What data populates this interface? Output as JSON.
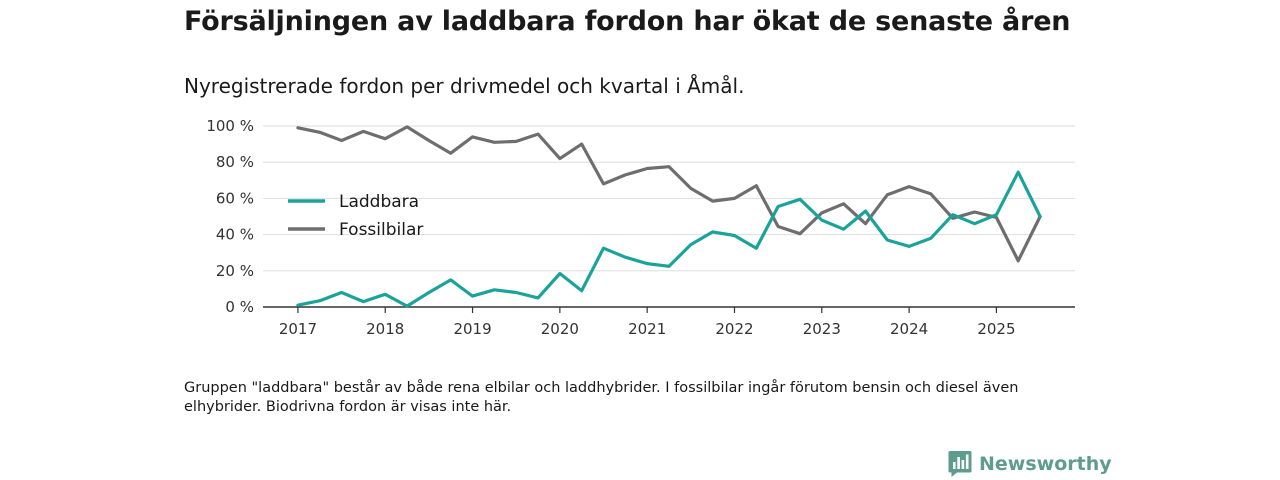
{
  "title": "Försäljningen av laddbara fordon har ökat de senaste åren",
  "subtitle": "Nyregistrerade fordon per drivmedel och kvartal i Åmål.",
  "note": "Gruppen \"laddbara\" består av både rena elbilar och laddhybrider. I fossilbilar ingår förutom bensin och diesel även elhybrider. Biodrivna fordon är visas inte här.",
  "brand": {
    "name": "Newsworthy",
    "logo_icon": "bar-chart-badge-icon",
    "color": "#5f9c90"
  },
  "chart_data": {
    "type": "line",
    "x_start": 2017.0,
    "x_step": 0.25,
    "xlim": [
      2016.6,
      2025.9
    ],
    "ylim": [
      0,
      100
    ],
    "xticks": [
      2017,
      2018,
      2019,
      2020,
      2021,
      2022,
      2023,
      2024,
      2025
    ],
    "xtick_labels": [
      "2017",
      "2018",
      "2019",
      "2020",
      "2021",
      "2022",
      "2023",
      "2024",
      "2025"
    ],
    "yticks": [
      0,
      20,
      40,
      60,
      80,
      100
    ],
    "ytick_labels": [
      "0 %",
      "20 %",
      "40 %",
      "60 %",
      "80 %",
      "100 %"
    ],
    "grid": true,
    "legend_position": "middle-left",
    "series": [
      {
        "name": "Laddbara",
        "color": "#1aa39a",
        "values": [
          1,
          3.5,
          8,
          3,
          7,
          0.5,
          8,
          15,
          6,
          9.5,
          8,
          5,
          18.5,
          9,
          32.5,
          27.5,
          24,
          22.5,
          34.5,
          41.5,
          39.5,
          32.5,
          55.5,
          59.5,
          48,
          43,
          53,
          37,
          33.5,
          38,
          51,
          46,
          51,
          74.5,
          50
        ]
      },
      {
        "name": "Fossilbilar",
        "color": "#6e6e6e",
        "values": [
          99,
          96.5,
          92,
          97,
          93,
          99.5,
          92,
          85,
          94,
          91,
          91.5,
          95.5,
          82,
          90,
          68,
          73,
          76.5,
          77.5,
          65.5,
          58.5,
          60,
          67,
          44.5,
          40.5,
          52,
          57,
          46,
          62,
          66.5,
          62.5,
          49,
          52.5,
          49.5,
          25.5,
          50
        ]
      }
    ]
  }
}
